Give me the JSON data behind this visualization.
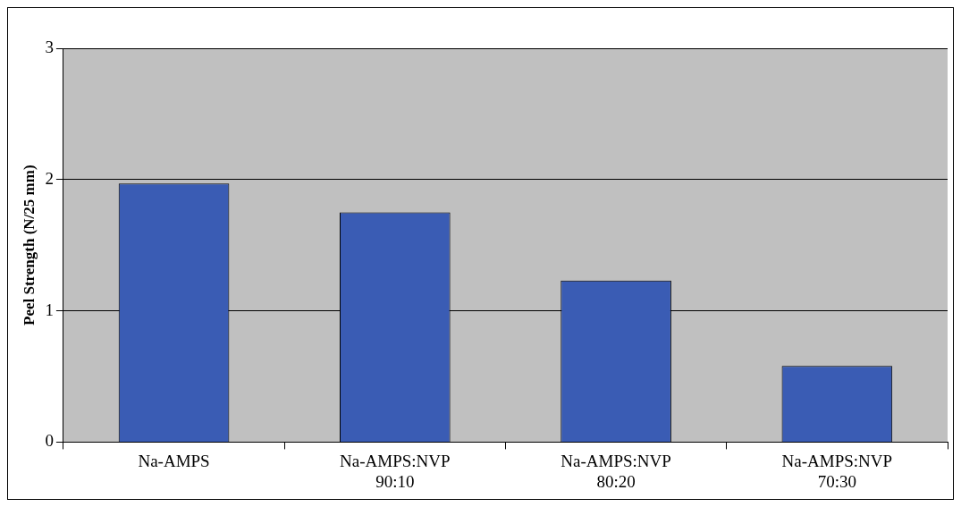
{
  "chart_data": {
    "type": "bar",
    "ylabel": "Peel Strength (N/25 mm)",
    "categories": [
      "Na-AMPS",
      "Na-AMPS:NVP 90:10",
      "Na-AMPS:NVP 80:20",
      "Na-AMPS:NVP 70:30"
    ],
    "values": [
      1.97,
      1.75,
      1.23,
      0.58
    ],
    "color": "#3a5cb4",
    "ylim": [
      0,
      3
    ],
    "yticks": [
      0,
      1,
      2,
      3
    ],
    "grid": "y",
    "legend": false
  }
}
